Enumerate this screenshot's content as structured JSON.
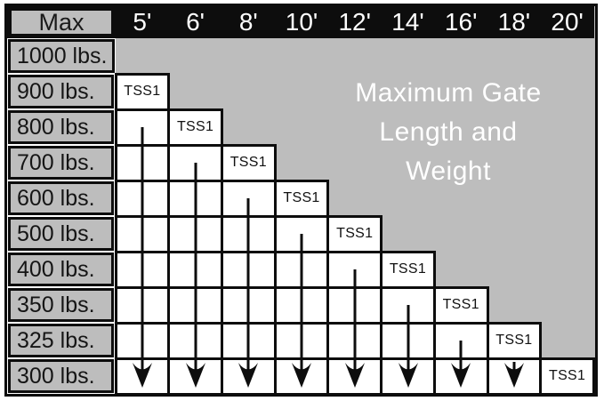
{
  "title": {
    "lines": [
      "Maximum Gate",
      "Length and",
      "Weight"
    ]
  },
  "chart_data": {
    "type": "table",
    "title": "Maximum Gate Length and Weight",
    "corner_label": "Max",
    "columns": [
      "5'",
      "6'",
      "8'",
      "10'",
      "12'",
      "14'",
      "16'",
      "18'",
      "20'"
    ],
    "rows": [
      "1000 lbs.",
      "900 lbs.",
      "800 lbs.",
      "700 lbs.",
      "600 lbs.",
      "500 lbs.",
      "400 lbs.",
      "350 lbs.",
      "325 lbs.",
      "300 lbs."
    ],
    "cell_label": "TSS1",
    "tss1_cells": [
      {
        "row": "900 lbs.",
        "column": "5'"
      },
      {
        "row": "800 lbs.",
        "column": "6'"
      },
      {
        "row": "700 lbs.",
        "column": "8'"
      },
      {
        "row": "600 lbs.",
        "column": "10'"
      },
      {
        "row": "500 lbs.",
        "column": "12'"
      },
      {
        "row": "400 lbs.",
        "column": "14'"
      },
      {
        "row": "350 lbs.",
        "column": "16'"
      },
      {
        "row": "325 lbs.",
        "column": "18'"
      },
      {
        "row": "300 lbs.",
        "column": "20'"
      }
    ],
    "arrow_columns": [
      "5'",
      "6'",
      "8'",
      "10'",
      "12'",
      "14'",
      "16'",
      "18'"
    ]
  },
  "colors": {
    "grid_black": "#0d0d0d",
    "panel_gray": "#bdbdbd",
    "cell_white": "#ffffff",
    "header_text": "#ffffff",
    "title_text": "#ffffff"
  }
}
